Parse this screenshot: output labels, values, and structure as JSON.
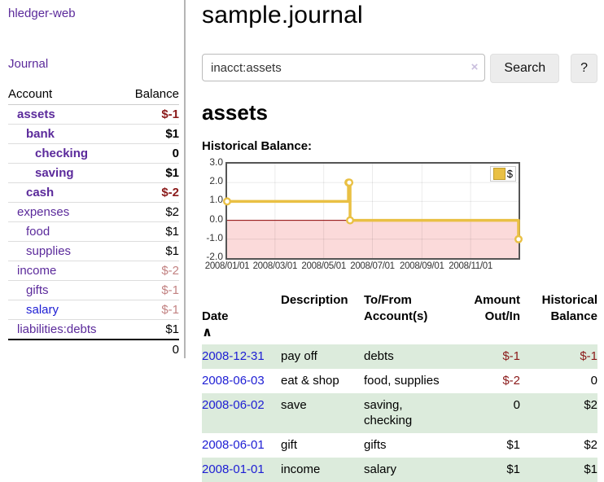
{
  "app": {
    "brand": "hledger-web",
    "nav_journal": "Journal"
  },
  "header": {
    "title": "sample.journal"
  },
  "search": {
    "value": "inacct:assets",
    "clear_icon": "×",
    "button_label": "Search",
    "help_label": "?"
  },
  "account": {
    "title": "assets",
    "chart_label": "Historical Balance:"
  },
  "sidebar": {
    "headers": {
      "account": "Account",
      "balance": "Balance"
    },
    "rows": [
      {
        "name": "assets",
        "balance": "$-1",
        "depth": 1,
        "selected": true,
        "balance_style": "negative-strong"
      },
      {
        "name": "bank",
        "balance": "$1",
        "depth": 2,
        "selected": true,
        "balance_style": ""
      },
      {
        "name": "checking",
        "balance": "0",
        "depth": 3,
        "selected": true,
        "balance_style": ""
      },
      {
        "name": "saving",
        "balance": "$1",
        "depth": 3,
        "selected": true,
        "balance_style": ""
      },
      {
        "name": "cash",
        "balance": "$-2",
        "depth": 2,
        "selected": true,
        "balance_style": "negative-strong"
      },
      {
        "name": "expenses",
        "balance": "$2",
        "depth": 1,
        "selected": false,
        "balance_style": ""
      },
      {
        "name": "food",
        "balance": "$1",
        "depth": 2,
        "selected": false,
        "balance_style": ""
      },
      {
        "name": "supplies",
        "balance": "$1",
        "depth": 2,
        "selected": false,
        "balance_style": ""
      },
      {
        "name": "income",
        "balance": "$-2",
        "depth": 1,
        "selected": false,
        "balance_style": "negative-soft"
      },
      {
        "name": "gifts",
        "balance": "$-1",
        "depth": 2,
        "selected": false,
        "balance_style": "negative-soft"
      },
      {
        "name": "salary",
        "balance": "$-1",
        "depth": 2,
        "selected": false,
        "balance_style": "negative-soft",
        "link_style": "unvisited"
      },
      {
        "name": "liabilities:debts",
        "balance": "$1",
        "depth": 1,
        "selected": false,
        "balance_style": "",
        "last": true
      }
    ],
    "total": "0"
  },
  "chart_data": {
    "type": "line",
    "step": true,
    "series": [
      {
        "name": "$",
        "color": "#e9c044",
        "points": [
          [
            "2008-01-01",
            1
          ],
          [
            "2008-06-01",
            2
          ],
          [
            "2008-06-02",
            2
          ],
          [
            "2008-06-03",
            0
          ],
          [
            "2008-12-31",
            -1
          ]
        ]
      }
    ],
    "xrange": [
      "2008-01-01",
      "2008-12-31"
    ],
    "ylim": [
      -2,
      3
    ],
    "yticks": [
      3.0,
      2.0,
      1.0,
      0.0,
      -1.0,
      -2.0
    ],
    "xticks": [
      "2008/01/01",
      "2008/03/01",
      "2008/05/01",
      "2008/07/01",
      "2008/09/01",
      "2008/11/01"
    ],
    "title": "",
    "xlabel": "",
    "ylabel": "",
    "grid": true,
    "legend_position": "top-right",
    "negative_region_fill": "#fbdada",
    "zero_line_color": "#8b0000"
  },
  "register": {
    "headers": {
      "date": "Date",
      "description": "Description",
      "accounts": "To/From\nAccount(s)",
      "amount": "Amount\nOut/In",
      "balance": "Historical\nBalance"
    },
    "sort_icon": "∧",
    "rows": [
      {
        "date": "2008-12-31",
        "description": "pay off",
        "accounts": "debts",
        "amount": "$-1",
        "amount_neg": true,
        "balance": "$-1",
        "balance_neg": true,
        "shaded": true
      },
      {
        "date": "2008-06-03",
        "description": "eat & shop",
        "accounts": "food, supplies",
        "amount": "$-2",
        "amount_neg": true,
        "balance": "0",
        "balance_neg": false,
        "shaded": false
      },
      {
        "date": "2008-06-02",
        "description": "save",
        "accounts": "saving,\nchecking",
        "amount": "0",
        "amount_neg": false,
        "balance": "$2",
        "balance_neg": false,
        "shaded": true
      },
      {
        "date": "2008-06-01",
        "description": "gift",
        "accounts": "gifts",
        "amount": "$1",
        "amount_neg": false,
        "balance": "$2",
        "balance_neg": false,
        "shaded": false
      },
      {
        "date": "2008-01-01",
        "description": "income",
        "accounts": "salary",
        "amount": "$1",
        "amount_neg": false,
        "balance": "$1",
        "balance_neg": false,
        "shaded": true
      }
    ]
  },
  "colors": {
    "accent_purple": "#5b2a9b",
    "link_blue": "#1d1dd4",
    "negative_strong": "#8b1a1a",
    "negative_soft": "#c28282",
    "row_green": "#dcebdc",
    "chart_gold": "#e9c044",
    "chart_negative_fill": "#fbdada",
    "chart_zero_line": "#8b0000",
    "divider_gray": "#b5b5b5"
  }
}
